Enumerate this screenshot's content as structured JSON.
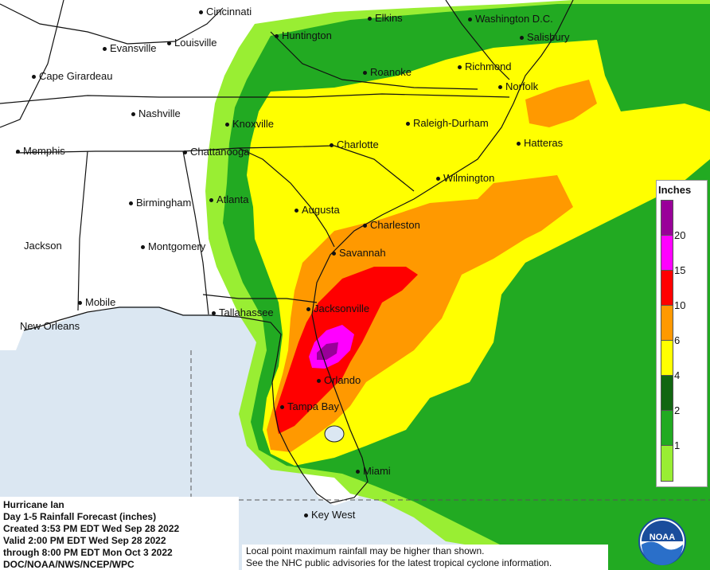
{
  "map": {
    "colors": {
      "ocean": "#dbe7f2",
      "land": "#ffffff",
      "light_green": "#99ee33",
      "green": "#22aa22",
      "dark_green": "#116611",
      "yellow": "#ffff00",
      "orange": "#ff9900",
      "red": "#ff0000",
      "magenta": "#ff00ff",
      "purple": "#990099"
    },
    "cities": [
      {
        "id": "cincinnati",
        "name": "Cincinnati"
      },
      {
        "id": "elkins",
        "name": "Elkins"
      },
      {
        "id": "washington",
        "name": "Washington D.C."
      },
      {
        "id": "evansville",
        "name": "Evansville"
      },
      {
        "id": "louisville",
        "name": "Louisville"
      },
      {
        "id": "huntington",
        "name": "Huntington"
      },
      {
        "id": "salisbury",
        "name": "Salisbury"
      },
      {
        "id": "cape-girardeau",
        "name": "Cape Girardeau"
      },
      {
        "id": "roanoke",
        "name": "Roanoke"
      },
      {
        "id": "richmond",
        "name": "Richmond"
      },
      {
        "id": "norfolk",
        "name": "Norfolk"
      },
      {
        "id": "nashville",
        "name": "Nashville"
      },
      {
        "id": "knoxville",
        "name": "Knoxville"
      },
      {
        "id": "raleigh-durham",
        "name": "Raleigh-Durham"
      },
      {
        "id": "memphis",
        "name": "Memphis"
      },
      {
        "id": "chattanooga",
        "name": "Chattanooga"
      },
      {
        "id": "charlotte",
        "name": "Charlotte"
      },
      {
        "id": "hatteras",
        "name": "Hatteras"
      },
      {
        "id": "wilmington",
        "name": "Wilmington"
      },
      {
        "id": "birmingham",
        "name": "Birmingham"
      },
      {
        "id": "atlanta",
        "name": "Atlanta"
      },
      {
        "id": "augusta",
        "name": "Augusta"
      },
      {
        "id": "charleston",
        "name": "Charleston"
      },
      {
        "id": "jackson",
        "name": "Jackson"
      },
      {
        "id": "montgomery",
        "name": "Montgomery"
      },
      {
        "id": "savannah",
        "name": "Savannah"
      },
      {
        "id": "mobile",
        "name": "Mobile"
      },
      {
        "id": "new-orleans",
        "name": "New Orleans"
      },
      {
        "id": "tallahassee",
        "name": "Tallahassee"
      },
      {
        "id": "jacksonville",
        "name": "Jacksonville"
      },
      {
        "id": "orlando",
        "name": "Orlando"
      },
      {
        "id": "tampa-bay",
        "name": "Tampa Bay"
      },
      {
        "id": "miami",
        "name": "Miami"
      },
      {
        "id": "key-west",
        "name": "Key West"
      }
    ]
  },
  "legend": {
    "title": "Inches",
    "ticks": [
      "20",
      "15",
      "10",
      "6",
      "4",
      "2",
      "1"
    ],
    "swatches": [
      {
        "color": "#990099"
      },
      {
        "color": "#ff00ff"
      },
      {
        "color": "#ff0000"
      },
      {
        "color": "#ff9900"
      },
      {
        "color": "#ffff00"
      },
      {
        "color": "#116611"
      },
      {
        "color": "#22aa22"
      },
      {
        "color": "#99ee33"
      },
      {
        "color": "#ffffff"
      }
    ]
  },
  "info": {
    "line1": "Hurricane Ian",
    "line2": "Day 1-5 Rainfall Forecast (inches)",
    "line3": "Created 3:53 PM EDT Wed Sep 28 2022",
    "line4": "Valid 2:00 PM EDT Wed Sep 28 2022",
    "line5": "through 8:00 PM EDT Mon Oct 3 2022",
    "line6": "DOC/NOAA/NWS/NCEP/WPC"
  },
  "note": {
    "line1": "Local point maximum rainfall may be higher than shown.",
    "line2": "See the NHC public advisories for the latest tropical cyclone information."
  },
  "logo": {
    "text": "NOAA"
  }
}
